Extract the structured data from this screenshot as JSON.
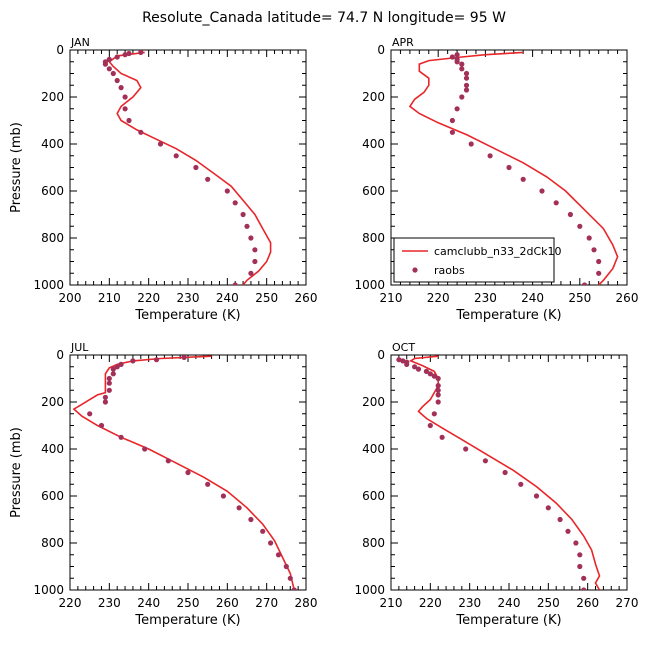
{
  "figure": {
    "title": "Resolute_Canada   latitude= 74.7 N longitude= 95 W"
  },
  "legend": {
    "placement": "bottom-right of APR panel",
    "model_label": "camclubb_n33_2dCk10",
    "obs_label": "raobs"
  },
  "colors": {
    "model": "#e8262a",
    "obs": "#a33058"
  },
  "chart_data": [
    {
      "type": "line",
      "panel": "JAN",
      "xlabel": "Temperature (K)",
      "ylabel": "Pressure (mb)",
      "xlim": [
        200,
        260
      ],
      "ylim": [
        1000,
        0
      ],
      "y_inverted": true,
      "xticks": [
        200,
        210,
        220,
        230,
        240,
        250,
        260
      ],
      "yticks": [
        0,
        200,
        400,
        600,
        800,
        1000
      ],
      "series": [
        {
          "name": "camclubb_n33_2dCk10",
          "kind": "line",
          "points": [
            [
              219,
              10
            ],
            [
              212,
              25
            ],
            [
              210,
              50
            ],
            [
              211,
              70
            ],
            [
              213,
              100
            ],
            [
              217,
              130
            ],
            [
              218,
              160
            ],
            [
              216,
              200
            ],
            [
              213,
              240
            ],
            [
              212,
              270
            ],
            [
              213,
              300
            ],
            [
              217,
              340
            ],
            [
              222,
              380
            ],
            [
              227,
              420
            ],
            [
              232,
              470
            ],
            [
              237,
              530
            ],
            [
              241,
              580
            ],
            [
              244,
              640
            ],
            [
              247,
              700
            ],
            [
              249,
              760
            ],
            [
              251,
              820
            ],
            [
              251,
              860
            ],
            [
              250,
              900
            ],
            [
              248,
              940
            ],
            [
              245,
              980
            ],
            [
              244,
              1000
            ]
          ]
        },
        {
          "name": "raobs",
          "kind": "scatter",
          "points": [
            [
              218,
              10
            ],
            [
              215,
              15
            ],
            [
              214,
              20
            ],
            [
              212,
              30
            ],
            [
              210,
              40
            ],
            [
              209,
              50
            ],
            [
              209,
              60
            ],
            [
              210,
              80
            ],
            [
              211,
              100
            ],
            [
              212,
              130
            ],
            [
              213,
              160
            ],
            [
              214,
              200
            ],
            [
              214,
              250
            ],
            [
              215,
              300
            ],
            [
              218,
              350
            ],
            [
              223,
              400
            ],
            [
              227,
              450
            ],
            [
              232,
              500
            ],
            [
              235,
              550
            ],
            [
              240,
              600
            ],
            [
              242,
              650
            ],
            [
              244,
              700
            ],
            [
              245,
              750
            ],
            [
              246,
              800
            ],
            [
              247,
              850
            ],
            [
              247,
              900
            ],
            [
              246,
              950
            ],
            [
              242,
              1000
            ]
          ]
        }
      ]
    },
    {
      "type": "line",
      "panel": "APR",
      "xlabel": "Temperature (K)",
      "ylabel": "",
      "xlim": [
        210,
        260
      ],
      "ylim": [
        1000,
        0
      ],
      "y_inverted": true,
      "xticks": [
        210,
        220,
        230,
        240,
        250,
        260
      ],
      "yticks": [
        0,
        200,
        400,
        600,
        800,
        1000
      ],
      "series": [
        {
          "name": "camclubb_n33_2dCk10",
          "kind": "line",
          "points": [
            [
              238,
              10
            ],
            [
              230,
              20
            ],
            [
              225,
              30
            ],
            [
              218,
              45
            ],
            [
              216,
              60
            ],
            [
              216,
              90
            ],
            [
              218,
              120
            ],
            [
              218,
              150
            ],
            [
              217,
              180
            ],
            [
              215,
              210
            ],
            [
              214,
              240
            ],
            [
              216,
              270
            ],
            [
              220,
              310
            ],
            [
              226,
              360
            ],
            [
              232,
              420
            ],
            [
              238,
              480
            ],
            [
              243,
              540
            ],
            [
              247,
              600
            ],
            [
              251,
              680
            ],
            [
              255,
              760
            ],
            [
              257,
              830
            ],
            [
              258,
              880
            ],
            [
              257,
              930
            ],
            [
              255,
              980
            ],
            [
              254,
              1000
            ]
          ]
        },
        {
          "name": "raobs",
          "kind": "scatter",
          "points": [
            [
              224,
              20
            ],
            [
              223,
              30
            ],
            [
              224,
              40
            ],
            [
              224,
              50
            ],
            [
              225,
              60
            ],
            [
              225,
              80
            ],
            [
              226,
              100
            ],
            [
              226,
              120
            ],
            [
              226,
              150
            ],
            [
              226,
              170
            ],
            [
              225,
              200
            ],
            [
              224,
              250
            ],
            [
              223,
              300
            ],
            [
              223,
              350
            ],
            [
              227,
              400
            ],
            [
              231,
              450
            ],
            [
              235,
              500
            ],
            [
              238,
              550
            ],
            [
              242,
              600
            ],
            [
              245,
              650
            ],
            [
              248,
              700
            ],
            [
              250,
              750
            ],
            [
              252,
              800
            ],
            [
              253,
              850
            ],
            [
              254,
              900
            ],
            [
              254,
              950
            ],
            [
              251,
              1000
            ]
          ]
        }
      ]
    },
    {
      "type": "line",
      "panel": "JUL",
      "xlabel": "Temperature (K)",
      "ylabel": "Pressure (mb)",
      "xlim": [
        220,
        280
      ],
      "ylim": [
        1000,
        0
      ],
      "y_inverted": true,
      "xticks": [
        220,
        230,
        240,
        250,
        260,
        270,
        280
      ],
      "yticks": [
        0,
        200,
        400,
        600,
        800,
        1000
      ],
      "series": [
        {
          "name": "camclubb_n33_2dCk10",
          "kind": "line",
          "points": [
            [
              256,
              5
            ],
            [
              243,
              15
            ],
            [
              236,
              25
            ],
            [
              232,
              40
            ],
            [
              230,
              55
            ],
            [
              229,
              80
            ],
            [
              229,
              110
            ],
            [
              229,
              140
            ],
            [
              229,
              160
            ],
            [
              227,
              170
            ],
            [
              225,
              190
            ],
            [
              223,
              210
            ],
            [
              221,
              230
            ],
            [
              223,
              260
            ],
            [
              227,
              300
            ],
            [
              233,
              350
            ],
            [
              240,
              400
            ],
            [
              247,
              460
            ],
            [
              254,
              520
            ],
            [
              260,
              580
            ],
            [
              265,
              650
            ],
            [
              269,
              720
            ],
            [
              272,
              790
            ],
            [
              274,
              860
            ],
            [
              276,
              930
            ],
            [
              277,
              1000
            ]
          ]
        },
        {
          "name": "raobs",
          "kind": "scatter",
          "points": [
            [
              249,
              10
            ],
            [
              242,
              20
            ],
            [
              236,
              25
            ],
            [
              233,
              40
            ],
            [
              232,
              50
            ],
            [
              231,
              60
            ],
            [
              231,
              80
            ],
            [
              230,
              100
            ],
            [
              230,
              120
            ],
            [
              230,
              150
            ],
            [
              229,
              180
            ],
            [
              229,
              200
            ],
            [
              225,
              250
            ],
            [
              228,
              300
            ],
            [
              233,
              350
            ],
            [
              239,
              400
            ],
            [
              245,
              450
            ],
            [
              250,
              500
            ],
            [
              255,
              550
            ],
            [
              259,
              600
            ],
            [
              263,
              650
            ],
            [
              266,
              700
            ],
            [
              269,
              750
            ],
            [
              271,
              800
            ],
            [
              273,
              850
            ],
            [
              275,
              900
            ],
            [
              276,
              950
            ],
            [
              277,
              1000
            ]
          ]
        }
      ]
    },
    {
      "type": "line",
      "panel": "OCT",
      "xlabel": "Temperature (K)",
      "ylabel": "",
      "xlim": [
        210,
        270
      ],
      "ylim": [
        1000,
        0
      ],
      "y_inverted": true,
      "xticks": [
        210,
        220,
        230,
        240,
        250,
        260,
        270
      ],
      "yticks": [
        0,
        200,
        400,
        600,
        800,
        1000
      ],
      "series": [
        {
          "name": "camclubb_n33_2dCk10",
          "kind": "line",
          "points": [
            [
              222,
              5
            ],
            [
              216,
              15
            ],
            [
              215,
              25
            ],
            [
              218,
              45
            ],
            [
              221,
              70
            ],
            [
              222,
              100
            ],
            [
              222,
              130
            ],
            [
              221,
              160
            ],
            [
              220,
              190
            ],
            [
              218,
              220
            ],
            [
              217,
              240
            ],
            [
              219,
              270
            ],
            [
              223,
              310
            ],
            [
              228,
              360
            ],
            [
              234,
              420
            ],
            [
              241,
              490
            ],
            [
              247,
              560
            ],
            [
              252,
              630
            ],
            [
              256,
              700
            ],
            [
              259,
              770
            ],
            [
              261,
              830
            ],
            [
              262,
              890
            ],
            [
              263,
              940
            ],
            [
              262,
              970
            ],
            [
              263,
              1000
            ]
          ]
        },
        {
          "name": "raobs",
          "kind": "scatter",
          "points": [
            [
              212,
              20
            ],
            [
              213,
              25
            ],
            [
              214,
              30
            ],
            [
              214,
              40
            ],
            [
              216,
              50
            ],
            [
              217,
              60
            ],
            [
              219,
              70
            ],
            [
              220,
              80
            ],
            [
              221,
              90
            ],
            [
              222,
              100
            ],
            [
              222,
              130
            ],
            [
              222,
              150
            ],
            [
              222,
              170
            ],
            [
              222,
              200
            ],
            [
              221,
              250
            ],
            [
              220,
              300
            ],
            [
              223,
              350
            ],
            [
              229,
              400
            ],
            [
              234,
              450
            ],
            [
              239,
              500
            ],
            [
              243,
              550
            ],
            [
              247,
              600
            ],
            [
              250,
              650
            ],
            [
              253,
              700
            ],
            [
              255,
              750
            ],
            [
              257,
              800
            ],
            [
              258,
              850
            ],
            [
              258,
              900
            ],
            [
              259,
              950
            ],
            [
              259,
              1000
            ]
          ]
        }
      ]
    }
  ]
}
